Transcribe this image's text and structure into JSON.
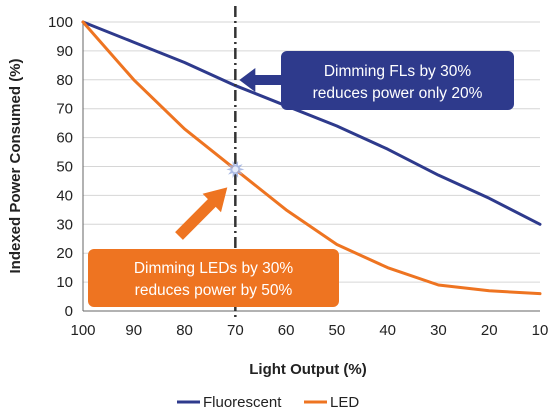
{
  "chart_data": {
    "type": "line",
    "xlabel": "Light Output (%)",
    "ylabel": "Indexed Power Consumed (%)",
    "x": [
      100,
      90,
      80,
      70,
      60,
      50,
      40,
      30,
      20,
      10
    ],
    "xlim": [
      100,
      10
    ],
    "ylim": [
      0,
      100
    ],
    "yticks": [
      0,
      10,
      20,
      30,
      40,
      50,
      60,
      70,
      80,
      90,
      100
    ],
    "series": [
      {
        "name": "Fluorescent",
        "color": "#2e3a8c",
        "values": [
          100,
          93,
          86,
          78,
          71,
          64,
          56,
          47,
          39,
          30
        ]
      },
      {
        "name": "LED",
        "color": "#ee7421",
        "values": [
          100,
          80,
          63,
          49,
          35,
          23,
          15,
          9,
          7,
          6
        ]
      }
    ],
    "marker_line": {
      "x": 70,
      "style": "dash-dot",
      "color": "#333333"
    },
    "marker_point": {
      "x": 70,
      "y": 49,
      "color": "#9fb0df"
    },
    "legend_position": "bottom",
    "annotations": [
      {
        "id": "fl",
        "lines": [
          "Dimming FLs by 30%",
          "reduces power only 20%"
        ],
        "color": "#2e3a8c",
        "arrow_to": {
          "x": 70,
          "y": 78
        }
      },
      {
        "id": "led",
        "lines": [
          "Dimming LEDs by 30%",
          "reduces power by 50%"
        ],
        "color": "#ee7421",
        "arrow_to": {
          "x": 70,
          "y": 49
        }
      }
    ]
  }
}
